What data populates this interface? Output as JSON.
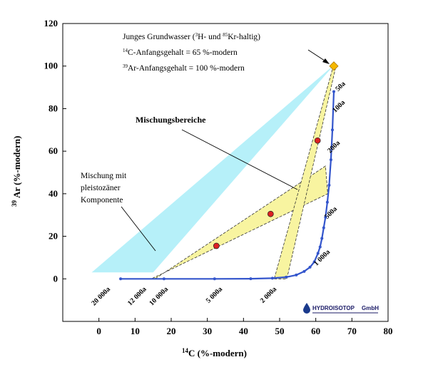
{
  "chart_data": {
    "type": "line",
    "xlabel": "C  (%-modern)",
    "xlabel_sup": "14",
    "ylabel": "Ar (%-modern)",
    "ylabel_sup": "39",
    "xlim": [
      -10,
      80
    ],
    "ylim": [
      -20,
      120
    ],
    "xticks": [
      0,
      10,
      20,
      30,
      40,
      50,
      60,
      70,
      80
    ],
    "yticks": [
      0,
      20,
      40,
      60,
      80,
      100,
      120
    ],
    "grid": false,
    "colors": {
      "decay_curve": "#3355cc",
      "mixing_zone": "#f8f4a0",
      "pleistocene_zone": "#aeeef8",
      "sample_points": "#dd2222",
      "endmember": "#f5b800"
    },
    "decay_curve": {
      "name": "",
      "x": [
        65,
        64.6,
        64.2,
        63.7,
        63.2,
        62.7,
        62.2,
        61.7,
        61.2,
        60.6,
        59.6,
        58.4,
        56.8,
        54.6,
        51.8,
        48.0,
        42.0,
        32.0,
        18.0,
        6.0
      ],
      "y": [
        88,
        70,
        56,
        44,
        36,
        29,
        24,
        19,
        15,
        12,
        8,
        5.5,
        3.5,
        1.8,
        0.8,
        0.3,
        0.05,
        0,
        0,
        0
      ]
    },
    "age_labels": [
      {
        "text": "50a",
        "x": 65,
        "y": 88
      },
      {
        "text": "100a",
        "x": 64.2,
        "y": 78
      },
      {
        "text": "200a",
        "x": 62.8,
        "y": 59
      },
      {
        "text": "500a",
        "x": 62,
        "y": 28
      },
      {
        "text": "1 000a",
        "x": 59,
        "y": 6
      },
      {
        "text": "2 000a",
        "x": 50,
        "y": -3
      },
      {
        "text": "5 000a",
        "x": 35,
        "y": -3
      },
      {
        "text": "10 000a",
        "x": 20,
        "y": -3
      },
      {
        "text": "12 000a",
        "x": 14,
        "y": -3
      },
      {
        "text": "20 000a",
        "x": 4,
        "y": -3
      }
    ],
    "samples": [
      {
        "x": 32.5,
        "y": 15.5
      },
      {
        "x": 47.5,
        "y": 30.5
      },
      {
        "x": 60.5,
        "y": 65
      }
    ],
    "endmember": {
      "x": 65,
      "y": 100
    },
    "mixing_zones": [
      {
        "points": [
          [
            14.5,
            0
          ],
          [
            15.5,
            0
          ],
          [
            62.7,
            53
          ],
          [
            63.3,
            40
          ]
        ]
      },
      {
        "points": [
          [
            48.5,
            0
          ],
          [
            52.0,
            0
          ],
          [
            65.4,
            98.5
          ],
          [
            64.6,
            98.5
          ]
        ]
      }
    ],
    "pleistocene_zone": {
      "points": [
        [
          -2,
          3
        ],
        [
          15,
          3
        ],
        [
          64.6,
          99.6
        ],
        [
          64.4,
          99.6
        ]
      ]
    },
    "annotations": {
      "young_title_a": "Junges Grundwasser (",
      "young_title_h_sup": "3",
      "young_title_b": "H- und ",
      "young_title_kr_sup": "85",
      "young_title_c": "Kr-haltig)",
      "c14_sup": "14",
      "c14_text": "C-Anfangsgehalt = 65 %-modern",
      "ar39_sup": "39",
      "ar39_text": "Ar-Anfangsgehalt = 100 %-modern",
      "mixing_label": "Mischungsbereiche",
      "pleisto_line1": "Mischung mit",
      "pleisto_line2": "pleistozäner",
      "pleisto_line3": "Komponente"
    },
    "logo": {
      "name": "HYDROISOTOP",
      "suffix": "GmbH",
      "icon": "water-drop-icon"
    }
  }
}
